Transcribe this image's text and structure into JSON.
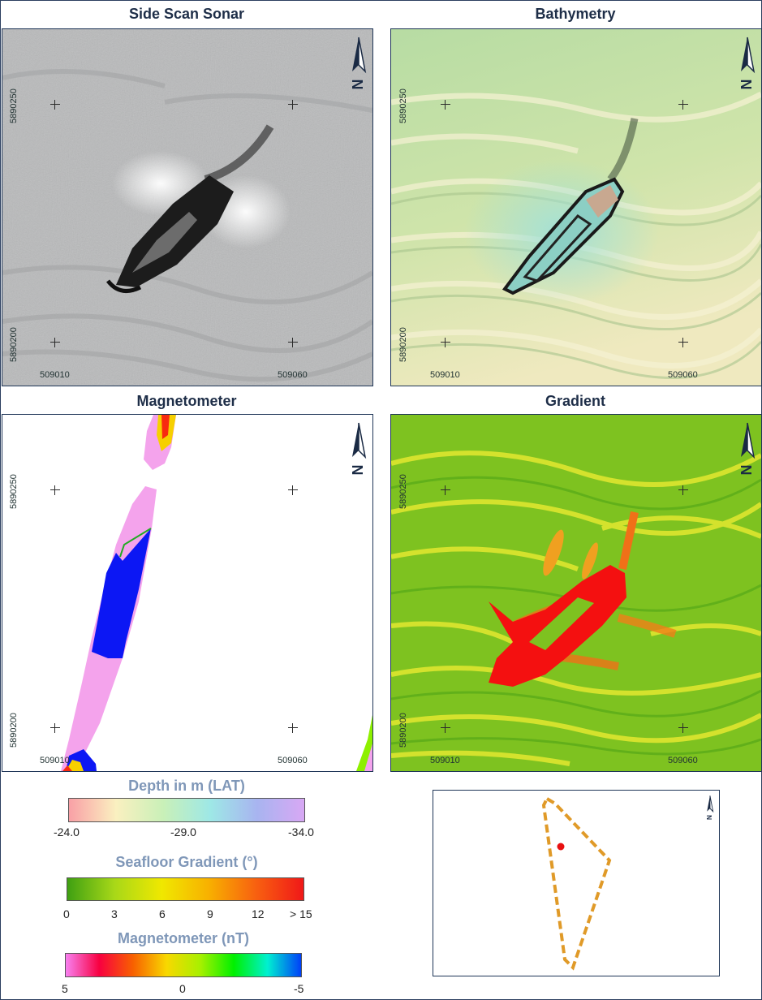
{
  "panels": {
    "sss": {
      "title": "Side Scan Sonar"
    },
    "bathy": {
      "title": "Bathymetry"
    },
    "mag": {
      "title": "Magnetometer"
    },
    "grad": {
      "title": "Gradient"
    }
  },
  "coords": {
    "northing_top": "5890250",
    "northing_bottom": "5890200",
    "easting_left": "509010",
    "easting_right": "509060"
  },
  "legends": {
    "depth": {
      "title": "Depth in m (LAT)",
      "ticks": [
        "-24.0",
        "-29.0",
        "-34.0"
      ],
      "colors": [
        "#f9a0a6",
        "#faf0c0",
        "#c9f0b8",
        "#9ee8e6",
        "#a8b4f0",
        "#d8a8f4"
      ]
    },
    "gradient": {
      "title": "Seafloor Gradient (°)",
      "ticks": [
        "0",
        "3",
        "6",
        "9",
        "12",
        "> 15"
      ],
      "colors": [
        "#3fa012",
        "#a8d818",
        "#f0e800",
        "#f8b000",
        "#f86010",
        "#f01818"
      ]
    },
    "magnetometer": {
      "title": "Magnetometer (nT)",
      "ticks": [
        "5",
        "0",
        "-5"
      ],
      "colors": [
        "#f880f0",
        "#f80040",
        "#f86000",
        "#f8d800",
        "#a8f000",
        "#00f000",
        "#00f0d0",
        "#0040f8"
      ]
    }
  },
  "overview": {
    "polygon_color": "#e09a28",
    "site_color": "#e81010"
  }
}
